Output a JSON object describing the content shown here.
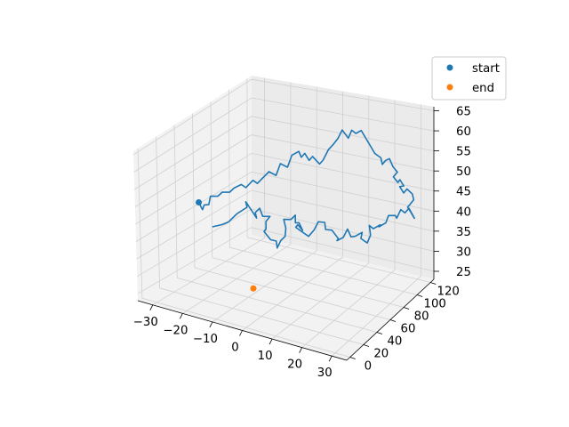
{
  "chart_data": {
    "type": "line3d",
    "title": "",
    "xlabel": "",
    "ylabel": "",
    "zlabel": "",
    "xlim": [
      -35,
      35
    ],
    "ylim": [
      -5,
      125
    ],
    "zlim": [
      23,
      66
    ],
    "x_ticks": [
      -30,
      -20,
      -10,
      0,
      10,
      20,
      30
    ],
    "y_ticks": [
      0,
      20,
      40,
      60,
      80,
      100,
      120
    ],
    "z_ticks": [
      25,
      30,
      35,
      40,
      45,
      50,
      55,
      60,
      65
    ],
    "grid": true,
    "legend_position": "upper right",
    "legend": [
      {
        "label": "start",
        "color": "#1f77b4"
      },
      {
        "label": "end",
        "color": "#ff7f0e"
      }
    ],
    "path_color": "#1f77b4",
    "path_points": [
      [
        -15,
        15,
        45
      ],
      [
        -12,
        16,
        46
      ],
      [
        -10,
        16,
        47
      ],
      [
        -10,
        18,
        47
      ],
      [
        -8,
        20,
        49
      ],
      [
        -8,
        22,
        49
      ],
      [
        -5,
        22,
        51
      ],
      [
        -6,
        24,
        52
      ],
      [
        -6,
        26,
        51
      ],
      [
        -4,
        30,
        47
      ],
      [
        -5,
        32,
        48
      ],
      [
        -4,
        34,
        49
      ],
      [
        -3,
        34,
        47
      ],
      [
        -1,
        36,
        47
      ],
      [
        -3,
        38,
        45
      ],
      [
        -3,
        38,
        43
      ],
      [
        -4,
        39,
        42
      ],
      [
        -2,
        40,
        40
      ],
      [
        0,
        40,
        40
      ],
      [
        0,
        41,
        38
      ],
      [
        1,
        42,
        40
      ],
      [
        2,
        44,
        41
      ],
      [
        2,
        45,
        43
      ],
      [
        1,
        46,
        45
      ],
      [
        3,
        48,
        45
      ],
      [
        4,
        50,
        46
      ],
      [
        4,
        50,
        44
      ],
      [
        5,
        51,
        44
      ],
      [
        6,
        52,
        42
      ],
      [
        4,
        53,
        43
      ],
      [
        3,
        54,
        42
      ],
      [
        5,
        55,
        41
      ],
      [
        7,
        56,
        40
      ],
      [
        9,
        56,
        42
      ],
      [
        10,
        58,
        44
      ],
      [
        12,
        59,
        44
      ],
      [
        12,
        60,
        42
      ],
      [
        14,
        61,
        42
      ],
      [
        16,
        62,
        40
      ],
      [
        15,
        64,
        39
      ],
      [
        17,
        65,
        40
      ],
      [
        18,
        67,
        42
      ],
      [
        19,
        68,
        40
      ],
      [
        20,
        70,
        40
      ],
      [
        22,
        72,
        41
      ],
      [
        21,
        74,
        39
      ],
      [
        23,
        75,
        38
      ],
      [
        24,
        76,
        40
      ],
      [
        23,
        78,
        42
      ],
      [
        24,
        80,
        41
      ],
      [
        26,
        82,
        42
      ],
      [
        25,
        84,
        41
      ],
      [
        27,
        86,
        42
      ],
      [
        28,
        86,
        44
      ],
      [
        30,
        88,
        44
      ],
      [
        30,
        90,
        43
      ],
      [
        31,
        92,
        45
      ],
      [
        32,
        94,
        44
      ],
      [
        33,
        96,
        45
      ],
      [
        34,
        98,
        43
      ],
      [
        34,
        100,
        42
      ],
      [
        32,
        100,
        44
      ],
      [
        31,
        102,
        44
      ],
      [
        33,
        103,
        46
      ],
      [
        32,
        105,
        47
      ],
      [
        30,
        105,
        48
      ],
      [
        29,
        104,
        47
      ],
      [
        27,
        106,
        48
      ],
      [
        28,
        108,
        48
      ],
      [
        26,
        110,
        49
      ],
      [
        25,
        111,
        48
      ],
      [
        23,
        112,
        49
      ],
      [
        24,
        114,
        50
      ],
      [
        22,
        115,
        51
      ],
      [
        21,
        114,
        53
      ],
      [
        19,
        116,
        52
      ],
      [
        18,
        115,
        51
      ],
      [
        18,
        113,
        53
      ],
      [
        16,
        112,
        54
      ],
      [
        15,
        110,
        56
      ],
      [
        13,
        110,
        58
      ],
      [
        12,
        108,
        60
      ],
      [
        10,
        108,
        59
      ],
      [
        9,
        106,
        60
      ],
      [
        8,
        105,
        58
      ],
      [
        6,
        104,
        60
      ],
      [
        5,
        102,
        58
      ],
      [
        3,
        102,
        56
      ],
      [
        2,
        100,
        55
      ],
      [
        0,
        100,
        52
      ],
      [
        -1,
        99,
        51
      ],
      [
        -3,
        97,
        53
      ],
      [
        -4,
        96,
        52
      ],
      [
        -5,
        94,
        54
      ],
      [
        -6,
        93,
        53
      ],
      [
        -6,
        90,
        55
      ],
      [
        -8,
        88,
        54
      ],
      [
        -9,
        86,
        51
      ],
      [
        -11,
        84,
        52
      ],
      [
        -12,
        82,
        49
      ],
      [
        -14,
        80,
        50
      ],
      [
        -15,
        78,
        49
      ],
      [
        -17,
        76,
        47
      ],
      [
        -18,
        74,
        48
      ],
      [
        -20,
        72,
        46
      ],
      [
        -21,
        70,
        47
      ],
      [
        -23,
        68,
        46
      ],
      [
        -24,
        66,
        45
      ],
      [
        -26,
        64,
        45
      ],
      [
        -27,
        62,
        44
      ],
      [
        -29,
        60,
        44
      ],
      [
        -29,
        58,
        42
      ],
      [
        -30,
        56,
        42
      ],
      [
        -30,
        54,
        41
      ],
      [
        -31,
        53,
        43
      ]
    ],
    "start_point": [
      -31,
      53,
      43
    ],
    "end_point": [
      0,
      10,
      32
    ]
  }
}
